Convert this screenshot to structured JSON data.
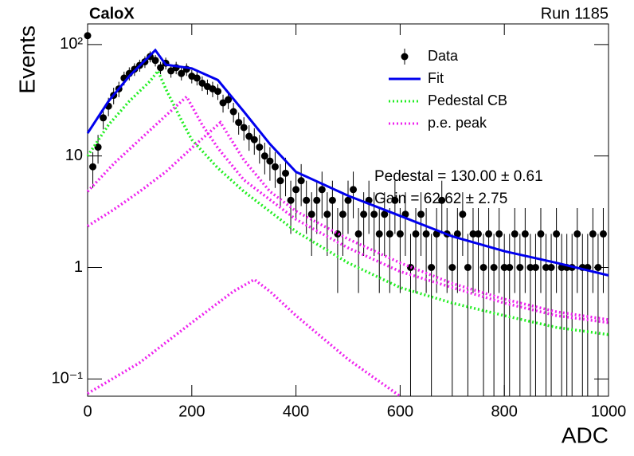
{
  "chart_data": {
    "type": "line",
    "title": "CaloX",
    "subtitle": "Run 1185",
    "x_label": "ADC",
    "y_label": "Events",
    "annotations": [
      "Pedestal = 130.00 ± 0.61",
      "Gain = 62.62 ± 2.75"
    ],
    "xlim": [
      0,
      1000
    ],
    "xticks": [
      0,
      200,
      400,
      600,
      800,
      1000
    ],
    "ylim": [
      0.07,
      153
    ],
    "log_y": true,
    "yticks": [
      {
        "value": 0.1,
        "label": "10⁻¹"
      },
      1,
      10,
      {
        "value": 100,
        "label": "10²"
      }
    ],
    "legend": "top-right",
    "series": [
      {
        "name": "Data",
        "color": "#000000",
        "style": "points",
        "x": [
          0,
          10,
          20,
          30,
          40,
          50,
          60,
          70,
          80,
          90,
          100,
          110,
          120,
          130,
          140,
          150,
          160,
          170,
          180,
          190,
          200,
          210,
          220,
          230,
          240,
          250,
          260,
          270,
          280,
          290,
          300,
          310,
          320,
          330,
          340,
          350,
          360,
          370,
          380,
          390,
          400,
          410,
          420,
          430,
          440,
          450,
          460,
          470,
          480,
          490,
          500,
          510,
          520,
          530,
          540,
          550,
          560,
          570,
          580,
          590,
          600,
          610,
          620,
          630,
          640,
          650,
          660,
          670,
          680,
          690,
          700,
          710,
          720,
          730,
          740,
          750,
          760,
          770,
          780,
          790,
          800,
          810,
          820,
          830,
          840,
          850,
          860,
          870,
          880,
          890,
          900,
          910,
          920,
          930,
          940,
          950,
          960,
          970,
          980,
          990
        ],
        "values": [
          120,
          8,
          12,
          22,
          28,
          35,
          40,
          50,
          55,
          60,
          65,
          70,
          78,
          72,
          62,
          68,
          58,
          62,
          55,
          60,
          52,
          50,
          45,
          42,
          40,
          38,
          30,
          32,
          25,
          20,
          18,
          15,
          14,
          12,
          10,
          9,
          8,
          6,
          7,
          4,
          5,
          6,
          4,
          3,
          4,
          5,
          3,
          4,
          2,
          3,
          4,
          5,
          2,
          3,
          4,
          3,
          2,
          3,
          2,
          4,
          2,
          3,
          1,
          2,
          3,
          2,
          1,
          2,
          4,
          2,
          1,
          2,
          3,
          1,
          2,
          2,
          1,
          2,
          1,
          2,
          1,
          1,
          2,
          1,
          2,
          1,
          1,
          2,
          1,
          1,
          2,
          1,
          1,
          1,
          2,
          1,
          1,
          2,
          1,
          2
        ],
        "errors": [
          10.95,
          2.83,
          3.46,
          4.69,
          5.29,
          5.92,
          6.32,
          7.07,
          7.42,
          7.75,
          8.06,
          8.37,
          8.83,
          8.49,
          7.87,
          8.25,
          7.62,
          7.87,
          7.42,
          7.75,
          7.21,
          7.07,
          6.71,
          6.48,
          6.32,
          6.16,
          5.48,
          5.66,
          5,
          4.47,
          4.24,
          3.87,
          3.74,
          3.46,
          3.16,
          3,
          2.83,
          2.45,
          2.65,
          2,
          2.24,
          2.45,
          2,
          1.73,
          2,
          2.24,
          1.73,
          2,
          1.41,
          1.73,
          2,
          2.24,
          1.41,
          1.73,
          2,
          1.73,
          1.41,
          1.73,
          1.41,
          2,
          1.41,
          1.73,
          1,
          1.41,
          1.73,
          1.41,
          1,
          1.41,
          2,
          1.41,
          1,
          1.41,
          1.73,
          1,
          1.41,
          1.41,
          1,
          1.41,
          1,
          1.41,
          1,
          1,
          1.41,
          1,
          1.41,
          1,
          1,
          1.41,
          1,
          1,
          1.41,
          1,
          1,
          1,
          1.41,
          1,
          1,
          1.41,
          1,
          1.41
        ]
      },
      {
        "name": "Fit",
        "color": "#0000ee",
        "style": "solid",
        "x": [
          0,
          40,
          80,
          130,
          150,
          200,
          250,
          300,
          350,
          400,
          500,
          600,
          700,
          800,
          900,
          1000
        ],
        "values": [
          16,
          31,
          52,
          89,
          66,
          61,
          48,
          25,
          12.8,
          7.2,
          4.4,
          2.9,
          1.9,
          1.4,
          1.1,
          0.85
        ]
      },
      {
        "name": "Pedestal CB",
        "color": "#22ee22",
        "style": "dotted",
        "x": [
          0,
          40,
          80,
          120,
          135,
          150,
          180,
          200,
          250,
          300,
          400,
          500,
          600,
          700,
          800,
          900,
          1000
        ],
        "values": [
          10,
          19,
          31,
          47,
          58,
          40,
          21,
          14,
          7.8,
          4.8,
          2.1,
          1.1,
          0.66,
          0.48,
          0.37,
          0.29,
          0.25
        ]
      },
      {
        "name": "p.e. peak",
        "color": "#ee22ee",
        "style": "dotted",
        "x": [
          0,
          50,
          100,
          150,
          190,
          220,
          250,
          300,
          400,
          500,
          600,
          700,
          800,
          900,
          1000
        ],
        "values": [
          4.8,
          8.5,
          14,
          23,
          34,
          19,
          11.8,
          6.1,
          2.7,
          1.5,
          0.92,
          0.66,
          0.48,
          0.37,
          0.32
        ]
      },
      {
        "color": "#ee22ee",
        "style": "dotted",
        "x": [
          0,
          50,
          100,
          150,
          200,
          255,
          300,
          350,
          400,
          500,
          600,
          700,
          800,
          900,
          1000
        ],
        "values": [
          2.35,
          3.3,
          4.8,
          7.2,
          11.8,
          20,
          9.2,
          4.8,
          3.2,
          1.8,
          1.1,
          0.72,
          0.52,
          0.4,
          0.34
        ]
      },
      {
        "color": "#ee22ee",
        "style": "dotted",
        "x": [
          0,
          100,
          200,
          280,
          320,
          350,
          400,
          500,
          600
        ],
        "values": [
          0.074,
          0.14,
          0.32,
          0.61,
          0.78,
          0.61,
          0.37,
          0.15,
          0.07
        ]
      }
    ]
  }
}
